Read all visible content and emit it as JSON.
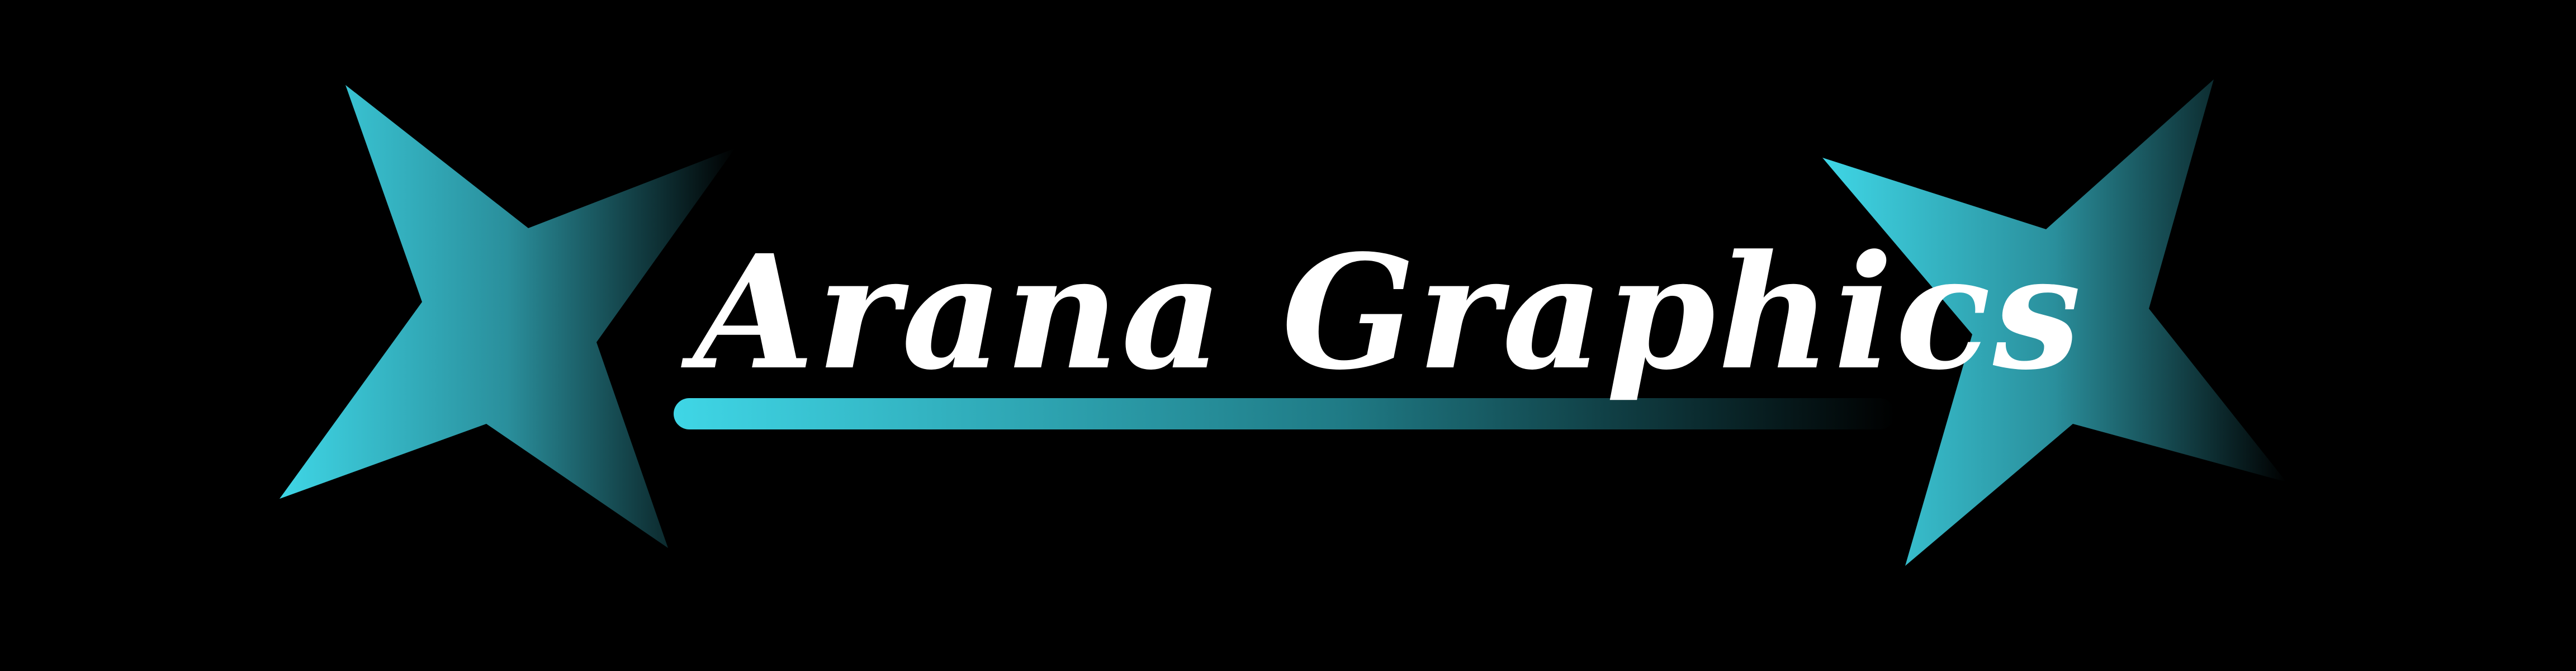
{
  "brand": {
    "title": "Arana Graphics"
  },
  "colors": {
    "background": "#000000",
    "accent": "#3fd6e6",
    "title_text": "#ffffff"
  }
}
